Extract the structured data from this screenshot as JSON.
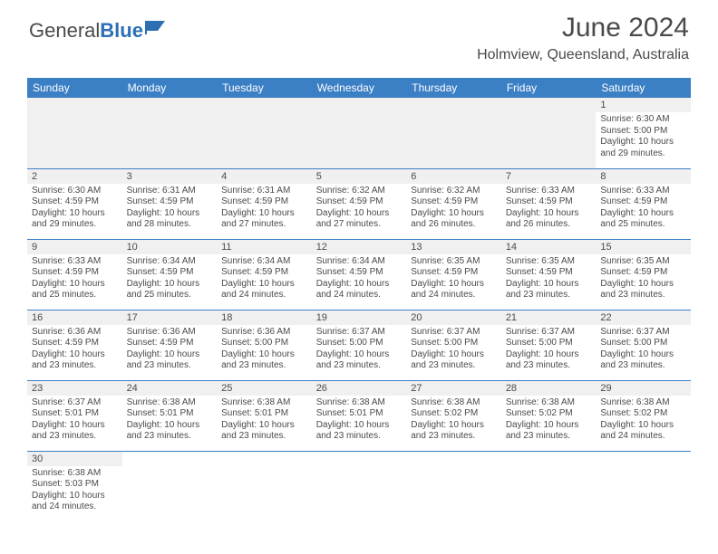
{
  "brand": {
    "first": "General",
    "second": "Blue"
  },
  "title": "June 2024",
  "location": "Holmview, Queensland, Australia",
  "colors": {
    "header_bg": "#3b7fc4",
    "header_text": "#ffffff",
    "text": "#4a4a4a",
    "rule": "#3b7fc4",
    "shade": "#f0f0f0",
    "bg": "#ffffff"
  },
  "days_of_week": [
    "Sunday",
    "Monday",
    "Tuesday",
    "Wednesday",
    "Thursday",
    "Friday",
    "Saturday"
  ],
  "weeks": [
    [
      null,
      null,
      null,
      null,
      null,
      null,
      {
        "n": "1",
        "sunrise": "Sunrise: 6:30 AM",
        "sunset": "Sunset: 5:00 PM",
        "day1": "Daylight: 10 hours",
        "day2": "and 29 minutes."
      }
    ],
    [
      {
        "n": "2",
        "sunrise": "Sunrise: 6:30 AM",
        "sunset": "Sunset: 4:59 PM",
        "day1": "Daylight: 10 hours",
        "day2": "and 29 minutes."
      },
      {
        "n": "3",
        "sunrise": "Sunrise: 6:31 AM",
        "sunset": "Sunset: 4:59 PM",
        "day1": "Daylight: 10 hours",
        "day2": "and 28 minutes."
      },
      {
        "n": "4",
        "sunrise": "Sunrise: 6:31 AM",
        "sunset": "Sunset: 4:59 PM",
        "day1": "Daylight: 10 hours",
        "day2": "and 27 minutes."
      },
      {
        "n": "5",
        "sunrise": "Sunrise: 6:32 AM",
        "sunset": "Sunset: 4:59 PM",
        "day1": "Daylight: 10 hours",
        "day2": "and 27 minutes."
      },
      {
        "n": "6",
        "sunrise": "Sunrise: 6:32 AM",
        "sunset": "Sunset: 4:59 PM",
        "day1": "Daylight: 10 hours",
        "day2": "and 26 minutes."
      },
      {
        "n": "7",
        "sunrise": "Sunrise: 6:33 AM",
        "sunset": "Sunset: 4:59 PM",
        "day1": "Daylight: 10 hours",
        "day2": "and 26 minutes."
      },
      {
        "n": "8",
        "sunrise": "Sunrise: 6:33 AM",
        "sunset": "Sunset: 4:59 PM",
        "day1": "Daylight: 10 hours",
        "day2": "and 25 minutes."
      }
    ],
    [
      {
        "n": "9",
        "sunrise": "Sunrise: 6:33 AM",
        "sunset": "Sunset: 4:59 PM",
        "day1": "Daylight: 10 hours",
        "day2": "and 25 minutes."
      },
      {
        "n": "10",
        "sunrise": "Sunrise: 6:34 AM",
        "sunset": "Sunset: 4:59 PM",
        "day1": "Daylight: 10 hours",
        "day2": "and 25 minutes."
      },
      {
        "n": "11",
        "sunrise": "Sunrise: 6:34 AM",
        "sunset": "Sunset: 4:59 PM",
        "day1": "Daylight: 10 hours",
        "day2": "and 24 minutes."
      },
      {
        "n": "12",
        "sunrise": "Sunrise: 6:34 AM",
        "sunset": "Sunset: 4:59 PM",
        "day1": "Daylight: 10 hours",
        "day2": "and 24 minutes."
      },
      {
        "n": "13",
        "sunrise": "Sunrise: 6:35 AM",
        "sunset": "Sunset: 4:59 PM",
        "day1": "Daylight: 10 hours",
        "day2": "and 24 minutes."
      },
      {
        "n": "14",
        "sunrise": "Sunrise: 6:35 AM",
        "sunset": "Sunset: 4:59 PM",
        "day1": "Daylight: 10 hours",
        "day2": "and 23 minutes."
      },
      {
        "n": "15",
        "sunrise": "Sunrise: 6:35 AM",
        "sunset": "Sunset: 4:59 PM",
        "day1": "Daylight: 10 hours",
        "day2": "and 23 minutes."
      }
    ],
    [
      {
        "n": "16",
        "sunrise": "Sunrise: 6:36 AM",
        "sunset": "Sunset: 4:59 PM",
        "day1": "Daylight: 10 hours",
        "day2": "and 23 minutes."
      },
      {
        "n": "17",
        "sunrise": "Sunrise: 6:36 AM",
        "sunset": "Sunset: 4:59 PM",
        "day1": "Daylight: 10 hours",
        "day2": "and 23 minutes."
      },
      {
        "n": "18",
        "sunrise": "Sunrise: 6:36 AM",
        "sunset": "Sunset: 5:00 PM",
        "day1": "Daylight: 10 hours",
        "day2": "and 23 minutes."
      },
      {
        "n": "19",
        "sunrise": "Sunrise: 6:37 AM",
        "sunset": "Sunset: 5:00 PM",
        "day1": "Daylight: 10 hours",
        "day2": "and 23 minutes."
      },
      {
        "n": "20",
        "sunrise": "Sunrise: 6:37 AM",
        "sunset": "Sunset: 5:00 PM",
        "day1": "Daylight: 10 hours",
        "day2": "and 23 minutes."
      },
      {
        "n": "21",
        "sunrise": "Sunrise: 6:37 AM",
        "sunset": "Sunset: 5:00 PM",
        "day1": "Daylight: 10 hours",
        "day2": "and 23 minutes."
      },
      {
        "n": "22",
        "sunrise": "Sunrise: 6:37 AM",
        "sunset": "Sunset: 5:00 PM",
        "day1": "Daylight: 10 hours",
        "day2": "and 23 minutes."
      }
    ],
    [
      {
        "n": "23",
        "sunrise": "Sunrise: 6:37 AM",
        "sunset": "Sunset: 5:01 PM",
        "day1": "Daylight: 10 hours",
        "day2": "and 23 minutes."
      },
      {
        "n": "24",
        "sunrise": "Sunrise: 6:38 AM",
        "sunset": "Sunset: 5:01 PM",
        "day1": "Daylight: 10 hours",
        "day2": "and 23 minutes."
      },
      {
        "n": "25",
        "sunrise": "Sunrise: 6:38 AM",
        "sunset": "Sunset: 5:01 PM",
        "day1": "Daylight: 10 hours",
        "day2": "and 23 minutes."
      },
      {
        "n": "26",
        "sunrise": "Sunrise: 6:38 AM",
        "sunset": "Sunset: 5:01 PM",
        "day1": "Daylight: 10 hours",
        "day2": "and 23 minutes."
      },
      {
        "n": "27",
        "sunrise": "Sunrise: 6:38 AM",
        "sunset": "Sunset: 5:02 PM",
        "day1": "Daylight: 10 hours",
        "day2": "and 23 minutes."
      },
      {
        "n": "28",
        "sunrise": "Sunrise: 6:38 AM",
        "sunset": "Sunset: 5:02 PM",
        "day1": "Daylight: 10 hours",
        "day2": "and 23 minutes."
      },
      {
        "n": "29",
        "sunrise": "Sunrise: 6:38 AM",
        "sunset": "Sunset: 5:02 PM",
        "day1": "Daylight: 10 hours",
        "day2": "and 24 minutes."
      }
    ],
    [
      {
        "n": "30",
        "sunrise": "Sunrise: 6:38 AM",
        "sunset": "Sunset: 5:03 PM",
        "day1": "Daylight: 10 hours",
        "day2": "and 24 minutes."
      },
      null,
      null,
      null,
      null,
      null,
      null
    ]
  ]
}
